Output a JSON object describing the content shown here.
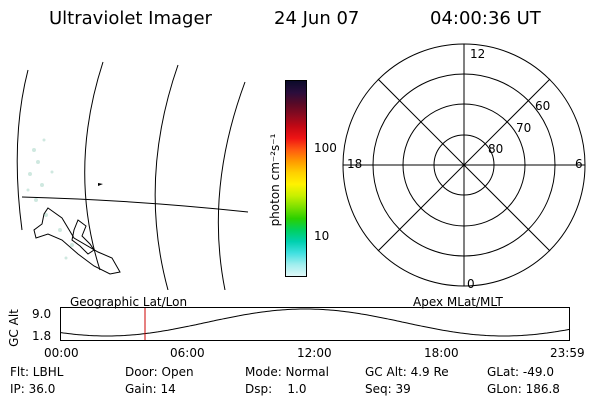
{
  "header": {
    "instrument": "Ultraviolet Imager",
    "date": "24 Jun 07",
    "time": "04:00:36 UT"
  },
  "colorbar": {
    "unit_label": "photon cm⁻²s⁻¹",
    "tick_labels": [
      "100",
      "10"
    ],
    "colors": [
      "#0b0a2a",
      "#2a0d3c",
      "#590a26",
      "#8b0a1f",
      "#c40814",
      "#ef1414",
      "#ff5a10",
      "#ff9a00",
      "#ffd000",
      "#fff200",
      "#c8f000",
      "#7ce000",
      "#2ad000",
      "#00d060",
      "#00d0b0",
      "#40e0e0",
      "#a0eeee",
      "#e0f8f8"
    ]
  },
  "polar_plot": {
    "mlt_labels": {
      "top": "12",
      "left": "18",
      "right": "6",
      "bottom": "0"
    },
    "lat_labels": [
      "60",
      "70",
      "80"
    ]
  },
  "timeline": {
    "title_left": "Geographic Lat/Lon",
    "title_right": "Apex MLat/MLT",
    "ylabel": "GC Alt",
    "ytick_top": "9.0",
    "ytick_bottom": "1.8",
    "xticks": [
      "00:00",
      "06:00",
      "12:00",
      "18:00",
      "23:59"
    ],
    "marker_color": "#cc0000",
    "line_color": "#000000"
  },
  "info_rows": [
    [
      "Flt: LBHL",
      "Door: Open",
      "Mode: Normal",
      "GC Alt: 4.9 Re",
      "GLat: -49.0"
    ],
    [
      "IP: 36.0",
      "Gain: 14",
      "Dsp:    1.0",
      "Seq: 39",
      "GLon: 186.8"
    ]
  ]
}
